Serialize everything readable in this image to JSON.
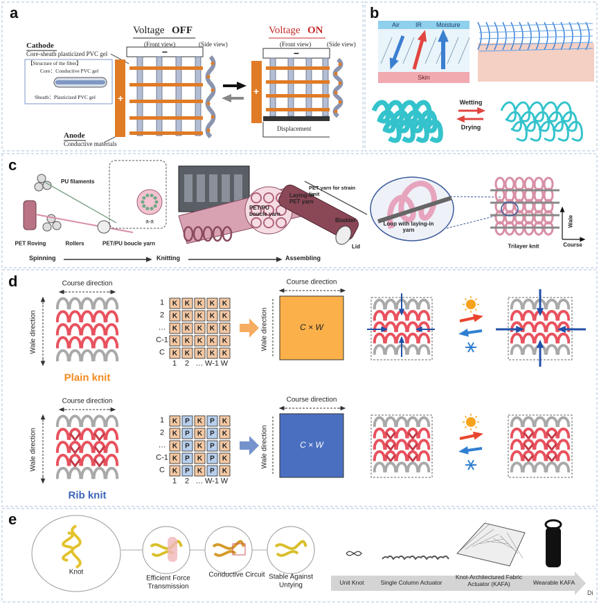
{
  "panel_a": {
    "label": "a",
    "off": {
      "prefix": "Voltage",
      "state": "OFF"
    },
    "on": {
      "prefix": "Voltage",
      "state": "ON"
    },
    "front_view": [
      "(Front view)",
      "(Front view)"
    ],
    "side_view": [
      "(Side view)",
      "(Side view)"
    ],
    "cathode": {
      "title": "Cathode",
      "subtitle": "Core-sheath plasticized PVC gel"
    },
    "fiber": {
      "title": "【Structure of the fiber】",
      "core": "Core：Conductive PVC gel",
      "sheath": "Sheath：Plasticized PVC gel"
    },
    "anode": {
      "title": "Anode",
      "subtitle": "Conductive materials"
    },
    "plus": [
      "+",
      "+"
    ],
    "minus": [
      "−",
      "−"
    ],
    "displacement": "Displacement"
  },
  "panel_b": {
    "label": "b",
    "air": "Air",
    "ir": "IR",
    "moisture": "Moisture",
    "skin": "Skin",
    "wetting": "Wetting",
    "drying": "Drying"
  },
  "panel_c": {
    "label": "c",
    "pu_filaments": "PU filaments",
    "pet_roving": "PET Roving",
    "rollers": "Rollers",
    "boucle_yarn": "PET/PU boucle yarn",
    "section": "a-a",
    "laying_in": "Laying-in PET yarn",
    "boucle_yarn_2": "PET/PU boucle yarn",
    "strain_limit": "PET yarn for strain limit",
    "bladder": "Bladder",
    "lid": "Lid",
    "stages": [
      "Spinning",
      "Knitting",
      "Assembling"
    ],
    "loop": "Loop with laying-in yarn",
    "trilayer": "Trilayer knit",
    "wale": "Wale",
    "course": "Course"
  },
  "panel_d": {
    "label": "d",
    "rows": [
      {
        "name": "Plain knit",
        "course": "Course direction",
        "wale": "Wale direction",
        "row_labels": [
          "1",
          "2",
          "…",
          "C-1",
          "C"
        ],
        "col_labels": [
          "1",
          "2",
          "…",
          "W-1",
          "W"
        ],
        "cells": [
          [
            "K",
            "K",
            "K",
            "K",
            "K"
          ],
          [
            "K",
            "K",
            "K",
            "K",
            "K"
          ],
          [
            "K",
            "K",
            "K",
            "K",
            "K"
          ],
          [
            "K",
            "K",
            "K",
            "K",
            "K"
          ],
          [
            "K",
            "K",
            "K",
            "K",
            "K"
          ]
        ],
        "block_course": "Course direction",
        "block_wale": "Wale direction",
        "block": "C × W"
      },
      {
        "name": "Rib knit",
        "course": "Course direction",
        "wale": "Wale direction",
        "row_labels": [
          "1",
          "2",
          "…",
          "C-1",
          "C"
        ],
        "col_labels": [
          "1",
          "2",
          "…",
          "W-1",
          "W"
        ],
        "cells": [
          [
            "K",
            "P",
            "K",
            "P",
            "K"
          ],
          [
            "K",
            "P",
            "K",
            "P",
            "K"
          ],
          [
            "K",
            "P",
            "K",
            "P",
            "K"
          ],
          [
            "K",
            "P",
            "K",
            "P",
            "K"
          ],
          [
            "K",
            "P",
            "K",
            "P",
            "K"
          ]
        ],
        "block_course": "Course direction",
        "block_wale": "Wale direction",
        "block": "C × W"
      }
    ]
  },
  "panel_e": {
    "label": "e",
    "knot": "Knot",
    "features": [
      "Efficient Force Transmission",
      "Conductive Circuit",
      "Stable Against Untying"
    ],
    "scale": [
      "Unit Knot",
      "Single Column Actuator",
      "Knot-Architectured Fabric Actuator (KAFA)",
      "Wearable KAFA"
    ]
  },
  "watermark": "Di"
}
